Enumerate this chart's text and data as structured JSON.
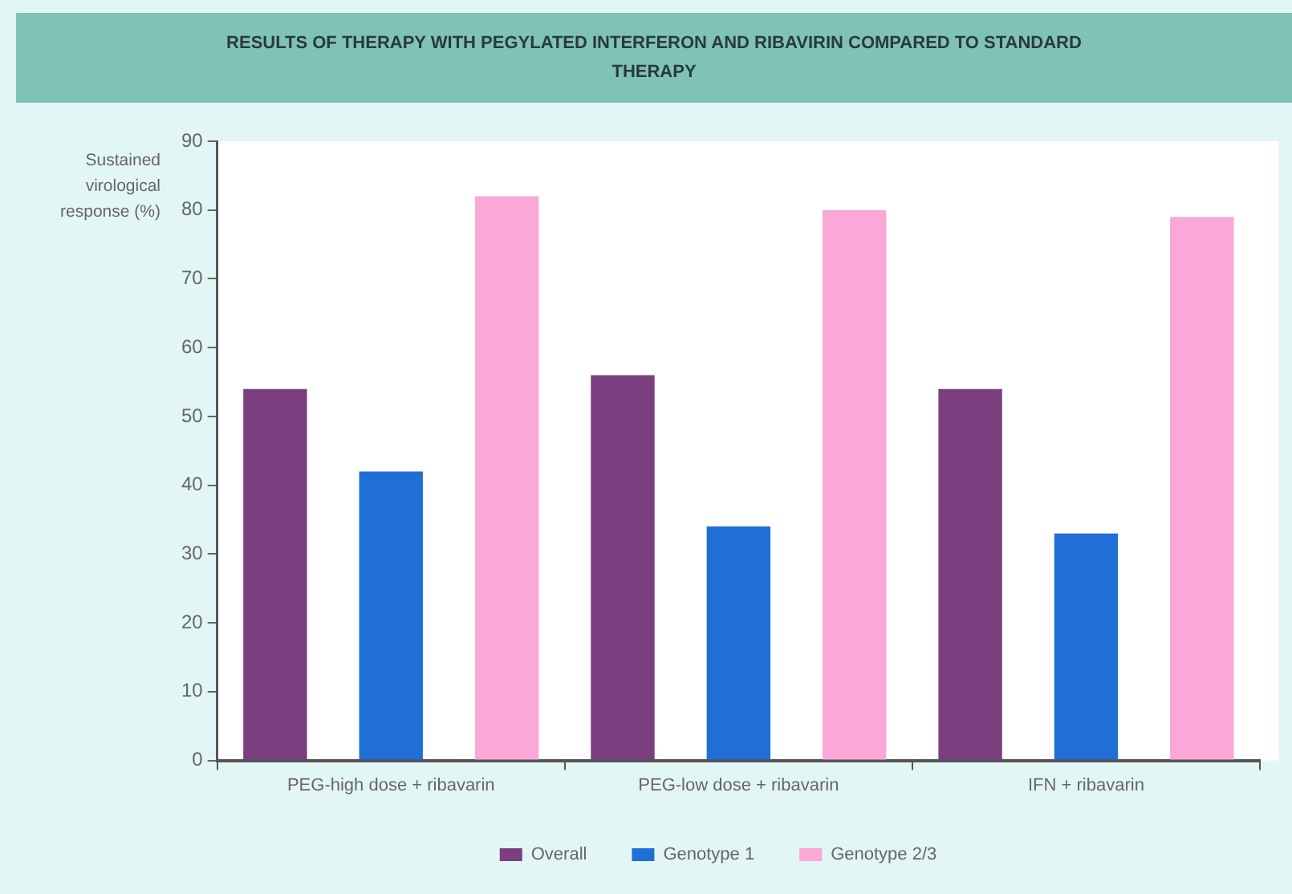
{
  "chart_data": {
    "type": "bar",
    "title": "RESULTS OF THERAPY WITH PEGYLATED INTERFERON AND RIBAVIRIN COMPARED TO STANDARD THERAPY",
    "ylabel": "Sustained virological response (%)",
    "categories": [
      "PEG-high dose + ribavarin",
      "PEG-low dose + ribavarin",
      "IFN + ribavarin"
    ],
    "series": [
      {
        "name": "Overall",
        "color": "#7b3f7f",
        "values": [
          54,
          56,
          54
        ]
      },
      {
        "name": "Genotype 1",
        "color": "#1f6fd6",
        "values": [
          42,
          34,
          33
        ]
      },
      {
        "name": "Genotype 2/3",
        "color": "#f9a8d8",
        "values": [
          82,
          80,
          79
        ]
      }
    ],
    "ylim": [
      0,
      90
    ],
    "yticks": [
      0,
      10,
      20,
      30,
      40,
      50,
      60,
      70,
      80,
      90
    ],
    "grid": false,
    "legend": "bottom"
  }
}
